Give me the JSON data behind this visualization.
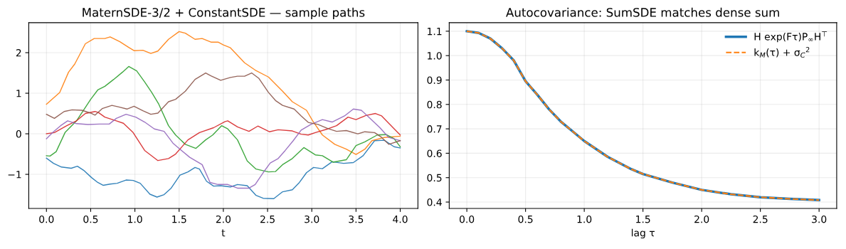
{
  "chart_data": [
    {
      "type": "line",
      "title": "MaternSDE-3/2 + ConstantSDE — sample paths",
      "xlabel": "t",
      "xlim": [
        -0.2,
        4.2
      ],
      "ylim": [
        -1.84,
        2.74
      ],
      "xticks": [
        {
          "value": 0,
          "label": "0.0"
        },
        0.5,
        {
          "value": 1,
          "label": "1.0"
        },
        1.5,
        {
          "value": 2,
          "label": "2.0"
        },
        2.5,
        {
          "value": 3,
          "label": "3.0"
        },
        3.5,
        {
          "value": 4,
          "label": "4.0"
        }
      ],
      "yticks": [
        {
          "value": -1,
          "label": "−1"
        },
        0,
        1,
        2
      ],
      "grid": true,
      "legend": false,
      "line_style": "solid",
      "series": [
        {
          "color": "#1f77b4",
          "x": [
            0,
            0.08,
            0.17,
            0.28,
            0.35,
            0.42,
            0.51,
            0.58,
            0.64,
            0.72,
            0.8,
            0.9,
            0.98,
            1.06,
            1.17,
            1.25,
            1.33,
            1.41,
            1.51,
            1.6,
            1.68,
            1.73,
            1.81,
            1.89,
            1.97,
            2.08,
            2.16,
            2.27,
            2.37,
            2.45,
            2.57,
            2.67,
            2.78,
            2.86,
            2.94,
            3.02,
            3.12,
            3.23,
            3.36,
            3.47,
            3.58,
            3.71,
            3.82,
            3.93,
            4.0
          ],
          "values": [
            -0.6,
            -0.73,
            -0.82,
            -0.85,
            -0.8,
            -0.9,
            -1.08,
            -1.2,
            -1.27,
            -1.24,
            -1.22,
            -1.14,
            -1.15,
            -1.22,
            -1.49,
            -1.56,
            -1.5,
            -1.34,
            -1.02,
            -0.94,
            -0.83,
            -0.87,
            -1.17,
            -1.29,
            -1.28,
            -1.31,
            -1.25,
            -1.28,
            -1.52,
            -1.59,
            -1.6,
            -1.43,
            -1.38,
            -1.2,
            -0.96,
            -0.83,
            -0.86,
            -0.69,
            -0.73,
            -0.71,
            -0.54,
            -0.17,
            -0.16,
            -0.32,
            -0.35
          ]
        },
        {
          "color": "#ff7f0e",
          "x": [
            0,
            0.15,
            0.25,
            0.32,
            0.44,
            0.54,
            0.66,
            0.72,
            0.83,
            0.93,
            0.99,
            1.09,
            1.18,
            1.26,
            1.38,
            1.5,
            1.57,
            1.68,
            1.76,
            1.86,
            1.94,
            2.0,
            2.08,
            2.24,
            2.36,
            2.51,
            2.67,
            2.78,
            2.94,
            3.01,
            3.12,
            3.26,
            3.39,
            3.5,
            3.6,
            3.68,
            3.82,
            4.0
          ],
          "values": [
            0.73,
            1.02,
            1.52,
            1.72,
            2.22,
            2.35,
            2.35,
            2.39,
            2.27,
            2.13,
            2.05,
            2.06,
            1.98,
            2.04,
            2.33,
            2.52,
            2.48,
            2.33,
            2.35,
            2.26,
            2.26,
            2.19,
            2.12,
            1.75,
            1.57,
            1.4,
            1.05,
            0.79,
            0.58,
            0.32,
            -0.03,
            -0.26,
            -0.38,
            -0.51,
            -0.38,
            -0.17,
            -0.09,
            -0.06
          ]
        },
        {
          "color": "#2ca02c",
          "x": [
            0,
            0.04,
            0.11,
            0.21,
            0.34,
            0.5,
            0.58,
            0.66,
            0.76,
            0.86,
            0.93,
            1.02,
            1.11,
            1.19,
            1.27,
            1.38,
            1.46,
            1.57,
            1.69,
            1.8,
            1.88,
            1.98,
            2.05,
            2.16,
            2.27,
            2.37,
            2.51,
            2.59,
            2.67,
            2.78,
            2.91,
            3.04,
            3.12,
            3.24,
            3.39,
            3.5,
            3.6,
            3.74,
            3.84,
            3.93,
            4.0
          ],
          "values": [
            -0.54,
            -0.55,
            -0.44,
            0.03,
            0.32,
            0.85,
            1.08,
            1.17,
            1.34,
            1.52,
            1.66,
            1.55,
            1.28,
            1.02,
            0.73,
            0.2,
            -0.03,
            -0.26,
            -0.36,
            -0.15,
            -0.03,
            0.2,
            0.12,
            -0.15,
            -0.67,
            -0.87,
            -0.94,
            -0.93,
            -0.76,
            -0.61,
            -0.34,
            -0.52,
            -0.54,
            -0.7,
            -0.64,
            -0.29,
            -0.2,
            -0.03,
            -0.02,
            -0.12,
            -0.32
          ]
        },
        {
          "color": "#d62728",
          "x": [
            0,
            0.09,
            0.23,
            0.34,
            0.44,
            0.55,
            0.59,
            0.66,
            0.79,
            0.87,
            0.98,
            1.11,
            1.26,
            1.38,
            1.46,
            1.6,
            1.73,
            1.89,
            2.02,
            2.05,
            2.16,
            2.29,
            2.39,
            2.52,
            2.62,
            2.78,
            2.88,
            2.96,
            3.04,
            3.18,
            3.28,
            3.41,
            3.5,
            3.61,
            3.72,
            3.79,
            3.87,
            4.0
          ],
          "values": [
            0,
            0.03,
            0.2,
            0.32,
            0.5,
            0.55,
            0.52,
            0.41,
            0.32,
            0.26,
            0.03,
            -0.41,
            -0.66,
            -0.61,
            -0.5,
            -0.15,
            0.03,
            0.15,
            0.3,
            0.32,
            0.17,
            0.06,
            0.19,
            0.05,
            0.1,
            0.07,
            -0.01,
            -0.03,
            0.03,
            0.12,
            0.2,
            0.41,
            0.35,
            0.45,
            0.5,
            0.44,
            0.26,
            -0.03
          ]
        },
        {
          "color": "#9467bd",
          "x": [
            0,
            0.07,
            0.16,
            0.24,
            0.34,
            0.47,
            0.6,
            0.71,
            0.79,
            0.9,
            1.01,
            1.11,
            1.22,
            1.33,
            1.43,
            1.51,
            1.62,
            1.76,
            1.85,
            1.94,
            2.05,
            2.16,
            2.29,
            2.36,
            2.45,
            2.53,
            2.62,
            2.7,
            2.79,
            2.88,
            2.99,
            3.12,
            3.23,
            3.37,
            3.47,
            3.56,
            3.66,
            3.77,
            3.87,
            4.0
          ],
          "values": [
            -0.12,
            0.03,
            0.2,
            0.32,
            0.25,
            0.23,
            0.24,
            0.24,
            0.38,
            0.48,
            0.41,
            0.29,
            0.12,
            0.06,
            -0.23,
            -0.38,
            -0.58,
            -0.76,
            -1.2,
            -1.25,
            -1.25,
            -1.34,
            -1.34,
            -1.25,
            -0.96,
            -0.72,
            -0.61,
            -0.41,
            -0.17,
            0.09,
            0.23,
            0.35,
            0.29,
            0.44,
            0.61,
            0.58,
            0.38,
            0.15,
            -0.09,
            -0.17
          ]
        },
        {
          "color": "#8c564b",
          "x": [
            0,
            0.09,
            0.2,
            0.29,
            0.4,
            0.5,
            0.55,
            0.63,
            0.74,
            0.82,
            0.91,
            0.99,
            1.09,
            1.18,
            1.26,
            1.38,
            1.46,
            1.57,
            1.68,
            1.8,
            1.86,
            1.97,
            2.08,
            2.16,
            2.24,
            2.32,
            2.4,
            2.51,
            2.59,
            2.67,
            2.8,
            2.88,
            2.96,
            3.07,
            3.18,
            3.28,
            3.39,
            3.52,
            3.6,
            3.71,
            3.79,
            3.87,
            4.0
          ],
          "values": [
            0.48,
            0.38,
            0.55,
            0.59,
            0.58,
            0.51,
            0.46,
            0.62,
            0.7,
            0.66,
            0.61,
            0.68,
            0.57,
            0.48,
            0.51,
            0.79,
            0.85,
            1.05,
            1.34,
            1.5,
            1.43,
            1.32,
            1.39,
            1.42,
            1.42,
            1.5,
            1.37,
            1.02,
            0.82,
            0.7,
            0.61,
            0.44,
            0.28,
            0.23,
            0.13,
            0.06,
            0.08,
            0.0,
            0.05,
            0.03,
            -0.09,
            -0.26,
            -0.17
          ]
        }
      ]
    },
    {
      "type": "line",
      "title": "Autocovariance: SumSDE matches dense sum",
      "xlabel": "lag τ",
      "xlim": [
        -0.15,
        3.15
      ],
      "ylim": [
        0.374,
        1.135
      ],
      "xticks": [
        {
          "value": 0,
          "label": "0.0"
        },
        0.5,
        {
          "value": 1,
          "label": "1.0"
        },
        1.5,
        {
          "value": 2,
          "label": "2.0"
        },
        2.5,
        {
          "value": 3,
          "label": "3.0"
        }
      ],
      "yticks": [
        0.4,
        0.5,
        0.6,
        0.7,
        0.8,
        0.9,
        {
          "value": 1,
          "label": "1.0"
        },
        1.1
      ],
      "grid": true,
      "legend": "top right",
      "x": [
        0,
        0.1,
        0.2,
        0.3,
        0.4,
        0.5,
        0.6,
        0.7,
        0.8,
        0.9,
        1.0,
        1.2,
        1.4,
        1.5,
        1.75,
        2.0,
        2.25,
        2.5,
        2.75,
        3.0
      ],
      "series": [
        {
          "name": "H exp(Fτ)P$_{∞}$H$^{⊤}$",
          "color": "#1f77b4",
          "line_style": "solid",
          "values": [
            1.1,
            1.093,
            1.07,
            1.03,
            0.98,
            0.895,
            0.84,
            0.78,
            0.73,
            0.69,
            0.65,
            0.585,
            0.535,
            0.515,
            0.48,
            0.45,
            0.432,
            0.42,
            0.413,
            0.408
          ]
        },
        {
          "name": "k$_{M}$(τ) + σ$_{C}$$^{2}$",
          "color": "#ff7f0e",
          "line_style": "dashed",
          "values": [
            1.1,
            1.093,
            1.07,
            1.03,
            0.98,
            0.895,
            0.84,
            0.78,
            0.73,
            0.69,
            0.65,
            0.585,
            0.535,
            0.515,
            0.48,
            0.45,
            0.432,
            0.42,
            0.413,
            0.408
          ]
        }
      ]
    }
  ]
}
